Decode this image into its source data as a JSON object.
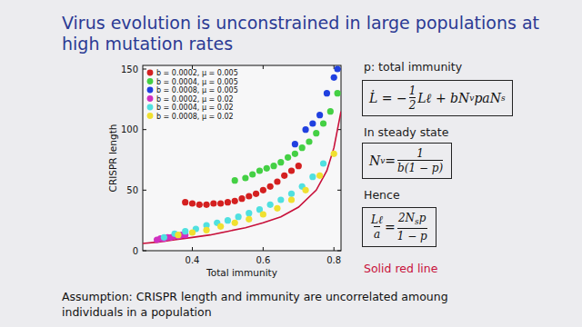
{
  "slide": {
    "title_lines": [
      "Virus evolution is unconstrained in large populations at",
      "high mutation rates"
    ],
    "right_texts": [
      "p: total immunity",
      "In steady state",
      "Hence"
    ],
    "formulas": [
      [
        "L̇ = −",
        {
          "frac": [
            [
              "1"
            ],
            [
              "2"
            ]
          ]
        },
        "Lℓ + bN",
        {
          "sub": "v"
        },
        "paN",
        {
          "sub": "s"
        }
      ],
      [
        "N",
        {
          "sub": "v"
        },
        " = ",
        {
          "frac": [
            [
              "1"
            ],
            [
              "b(1 − p)"
            ]
          ]
        }
      ],
      [
        {
          "frac": [
            [
              "Lℓ"
            ],
            [
              "a"
            ]
          ]
        },
        " = ",
        {
          "frac": [
            [
              "2N",
              {
                "sub": "s"
              },
              "p"
            ],
            [
              "1 − p"
            ]
          ]
        }
      ]
    ],
    "assumption": "Assumption: CRISPR length and immunity are uncorrelated amoung individuals in a population"
  },
  "chart_data": {
    "type": "scatter",
    "x_label": "Total immunity",
    "y_label": "CRISPR length",
    "xlim": [
      0.26,
      0.82
    ],
    "ylim": [
      0,
      153
    ],
    "xticks": [
      0.4,
      0.6,
      0.8
    ],
    "yticks": [
      0,
      50,
      100,
      150
    ],
    "grid": false,
    "legend": "upper left",
    "series": [
      {
        "name": "b = 0.0002, μ = 0.005",
        "color": "#d42020",
        "marker": "circle",
        "x": [
          0.38,
          0.4,
          0.42,
          0.44,
          0.46,
          0.48,
          0.5,
          0.52,
          0.54,
          0.56,
          0.58,
          0.6,
          0.62,
          0.64,
          0.66,
          0.68,
          0.7
        ],
        "values": [
          40,
          39,
          38,
          38,
          39,
          39,
          40,
          41,
          43,
          45,
          47,
          50,
          53,
          57,
          62,
          66,
          70
        ]
      },
      {
        "name": "b = 0.0004, μ = 0.005",
        "color": "#44d044",
        "marker": "circle",
        "x": [
          0.52,
          0.55,
          0.57,
          0.59,
          0.61,
          0.63,
          0.65,
          0.67,
          0.69,
          0.71,
          0.73,
          0.75,
          0.77,
          0.79,
          0.81
        ],
        "values": [
          58,
          60,
          63,
          66,
          68,
          70,
          73,
          77,
          80,
          85,
          90,
          97,
          105,
          115,
          130
        ]
      },
      {
        "name": "b = 0.0008, μ = 0.005",
        "color": "#2040e0",
        "marker": "circle",
        "x": [
          0.69,
          0.72,
          0.74,
          0.76,
          0.78,
          0.8,
          0.81
        ],
        "values": [
          88,
          100,
          105,
          112,
          130,
          143,
          150
        ]
      },
      {
        "name": "b = 0.0002, μ = 0.02",
        "color": "#d030c0",
        "marker": "circle",
        "x": [
          0.3,
          0.31,
          0.32,
          0.33,
          0.34,
          0.35,
          0.36,
          0.37,
          0.38
        ],
        "values": [
          9,
          10,
          10,
          11,
          11,
          12,
          12,
          13,
          13
        ]
      },
      {
        "name": "b = 0.0004, μ = 0.02",
        "color": "#50e0e0",
        "marker": "circle",
        "x": [
          0.32,
          0.35,
          0.38,
          0.41,
          0.44,
          0.47,
          0.5,
          0.53,
          0.56,
          0.59,
          0.62,
          0.65,
          0.68,
          0.71,
          0.74,
          0.77
        ],
        "values": [
          11,
          14,
          16,
          18,
          21,
          23,
          25,
          28,
          31,
          34,
          38,
          42,
          47,
          53,
          61,
          72
        ]
      },
      {
        "name": "b = 0.0008, μ = 0.02",
        "color": "#f0e030",
        "marker": "circle",
        "x": [
          0.36,
          0.4,
          0.44,
          0.48,
          0.52,
          0.56,
          0.6,
          0.64,
          0.68,
          0.72,
          0.76,
          0.8
        ],
        "values": [
          13,
          15,
          17,
          20,
          23,
          26,
          30,
          35,
          42,
          50,
          62,
          80
        ]
      },
      {
        "name": "Solid red line",
        "type": "line",
        "color": "#c8103a",
        "line_style": "solid",
        "x": [
          0.26,
          0.3,
          0.35,
          0.4,
          0.45,
          0.5,
          0.55,
          0.6,
          0.65,
          0.7,
          0.75,
          0.78,
          0.8,
          0.82
        ],
        "values": [
          6,
          7,
          9,
          11,
          13,
          16,
          19,
          23,
          28,
          36,
          50,
          66,
          85,
          115
        ]
      }
    ]
  }
}
